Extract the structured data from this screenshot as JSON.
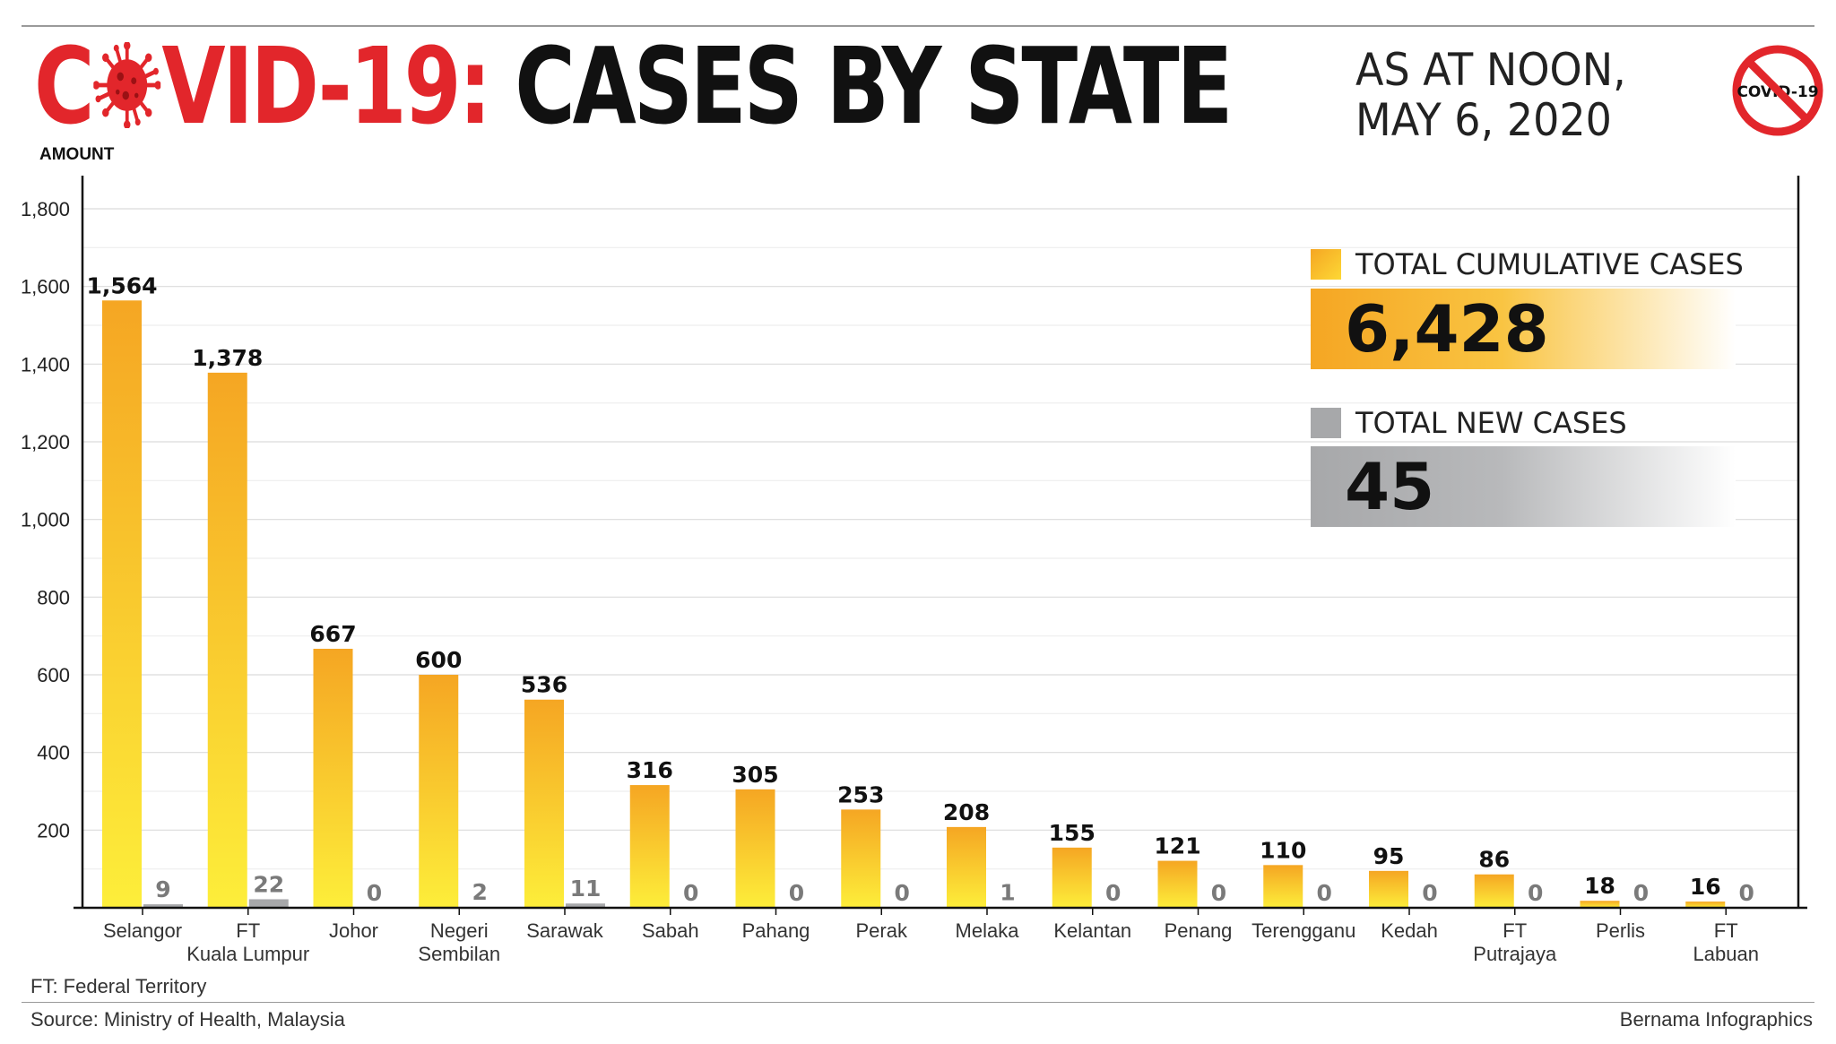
{
  "header": {
    "title_red_prefix_1": "C",
    "title_red_prefix_2": "VID-19:",
    "title_black": " CASES BY STATE",
    "as_at_line1": "AS AT NOON,",
    "as_at_line2": "MAY 6, 2020",
    "badge_text": "COVID-19"
  },
  "colors": {
    "accent_red": "#e2262b",
    "cumulative_top": "#f5a623",
    "cumulative_bottom": "#fdee3a",
    "new_cases": "#a7a8aa"
  },
  "legend": {
    "cumulative_label": "TOTAL CUMULATIVE CASES",
    "cumulative_total": "6,428",
    "new_label": "TOTAL NEW CASES",
    "new_total": "45"
  },
  "chart_data": {
    "type": "bar",
    "ylabel": "AMOUNT",
    "ylim": [
      0,
      1800
    ],
    "yticks": [
      200,
      400,
      600,
      800,
      1000,
      1200,
      1400,
      1600,
      1800
    ],
    "ytick_labels": [
      "200",
      "400",
      "600",
      "800",
      "1,000",
      "1,200",
      "1,400",
      "1,600",
      "1,800"
    ],
    "categories": [
      [
        "Selangor"
      ],
      [
        "FT",
        "Kuala Lumpur"
      ],
      [
        "Johor"
      ],
      [
        "Negeri",
        "Sembilan"
      ],
      [
        "Sarawak"
      ],
      [
        "Sabah"
      ],
      [
        "Pahang"
      ],
      [
        "Perak"
      ],
      [
        "Melaka"
      ],
      [
        "Kelantan"
      ],
      [
        "Penang"
      ],
      [
        "Terengganu"
      ],
      [
        "Kedah"
      ],
      [
        "FT",
        "Putrajaya"
      ],
      [
        "Perlis"
      ],
      [
        "FT",
        "Labuan"
      ]
    ],
    "series": [
      {
        "name": "TOTAL CUMULATIVE CASES",
        "values": [
          1564,
          1378,
          667,
          600,
          536,
          316,
          305,
          253,
          208,
          155,
          121,
          110,
          95,
          86,
          18,
          16
        ],
        "labels": [
          "1,564",
          "1,378",
          "667",
          "600",
          "536",
          "316",
          "305",
          "253",
          "208",
          "155",
          "121",
          "110",
          "95",
          "86",
          "18",
          "16"
        ]
      },
      {
        "name": "TOTAL NEW CASES",
        "values": [
          9,
          22,
          0,
          2,
          11,
          0,
          0,
          0,
          1,
          0,
          0,
          0,
          0,
          0,
          0,
          0
        ],
        "labels": [
          "9",
          "22",
          "0",
          "2",
          "11",
          "0",
          "0",
          "0",
          "1",
          "0",
          "0",
          "0",
          "0",
          "0",
          "0",
          "0"
        ]
      }
    ],
    "grid": true,
    "legend_position": "top-right"
  },
  "footer": {
    "note": "FT: Federal Territory",
    "source": "Source: Ministry of Health, Malaysia",
    "credit": "Bernama Infographics"
  }
}
